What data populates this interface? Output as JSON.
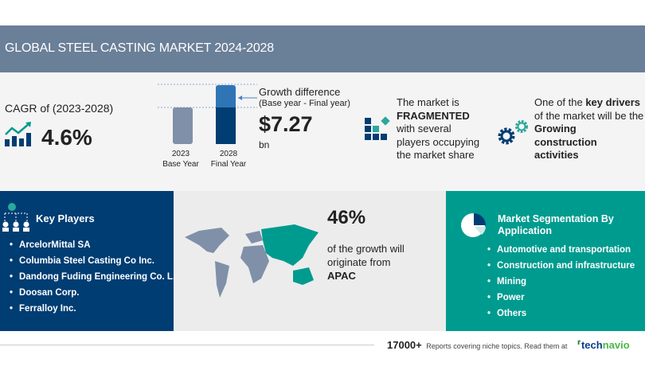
{
  "title": "GLOBAL STEEL CASTING MARKET 2024-2028",
  "cagr": {
    "label": "CAGR of (2023-2028)",
    "value": "4.6%"
  },
  "growth": {
    "bars": [
      {
        "year": "2023",
        "label": "Base Year"
      },
      {
        "year": "2028",
        "label": "Final Year"
      }
    ],
    "title": "Growth difference",
    "subtitle": "(Base year - Final year)",
    "value": "$7.27",
    "unit": "bn"
  },
  "fragmented": {
    "line1": "The market is",
    "bold": "FRAGMENTED",
    "rest": [
      "with several",
      "players occupying",
      "the market share"
    ]
  },
  "drivers": {
    "line1a": "One of the ",
    "line1b": "key drivers",
    "line2": "of the market will be the",
    "bold": [
      "Growing",
      "construction",
      "activities"
    ]
  },
  "key_players": {
    "title": "Key Players",
    "items": [
      "ArcelorMittal SA",
      "Columbia Steel Casting Co Inc.",
      "Dandong Fuding Engineering Co. L...",
      "Doosan Corp.",
      "Ferralloy Inc."
    ]
  },
  "region": {
    "share": "46%",
    "text1": "of the growth will",
    "text2": "originate from",
    "region": "APAC"
  },
  "segmentation": {
    "title1": "Market Segmentation By",
    "title2": "Application",
    "items": [
      "Automotive and transportation",
      "Construction and infrastructure",
      "Mining",
      "Power",
      "Others"
    ]
  },
  "footer": {
    "count": "17000+",
    "text": "Reports covering niche topics. Read them at",
    "brand_a": "tech",
    "brand_b": "navio"
  },
  "colors": {
    "banner": "#6a7f98",
    "navy": "#003d73",
    "teal": "#009b8f",
    "gray_bar": "#7f90a8"
  }
}
